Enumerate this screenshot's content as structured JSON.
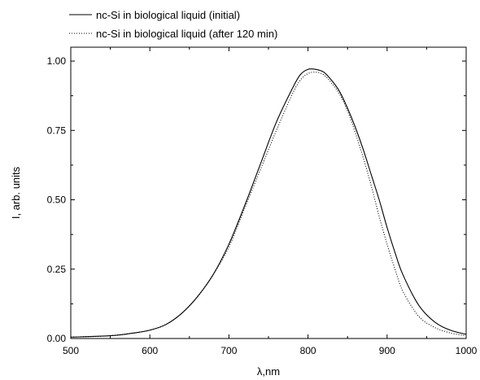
{
  "chart_data": {
    "type": "line",
    "title": "",
    "xlabel": "λ,nm",
    "ylabel": "I, arb. units",
    "xlim": [
      500,
      1000
    ],
    "ylim": [
      0,
      1.05
    ],
    "xticks": [
      "500",
      "600",
      "700",
      "800",
      "900",
      "1000"
    ],
    "xtick_values": [
      500,
      600,
      700,
      800,
      900,
      1000
    ],
    "yticks": [
      "0.00",
      "0.25",
      "0.50",
      "0.75",
      "1.00"
    ],
    "ytick_values": [
      0,
      0.25,
      0.5,
      0.75,
      1.0
    ],
    "grid": false,
    "legend_position": "top-left-outside",
    "series": [
      {
        "name": "nc-Si in biological liquid (initial)",
        "style": "solid",
        "color": "#000000",
        "x": [
          500,
          550,
          580,
          600,
          620,
          640,
          660,
          680,
          700,
          720,
          740,
          760,
          780,
          790,
          800,
          810,
          820,
          830,
          840,
          850,
          860,
          870,
          880,
          890,
          900,
          910,
          920,
          940,
          960,
          980,
          1000
        ],
        "y": [
          0.005,
          0.01,
          0.02,
          0.03,
          0.05,
          0.09,
          0.15,
          0.23,
          0.34,
          0.48,
          0.63,
          0.78,
          0.9,
          0.95,
          0.97,
          0.97,
          0.96,
          0.93,
          0.89,
          0.83,
          0.76,
          0.68,
          0.59,
          0.5,
          0.4,
          0.31,
          0.23,
          0.12,
          0.06,
          0.03,
          0.015
        ]
      },
      {
        "name": "nc-Si in biological liquid (after 120 min)",
        "style": "dotted",
        "color": "#000000",
        "x": [
          500,
          550,
          580,
          600,
          620,
          640,
          660,
          680,
          700,
          720,
          740,
          760,
          780,
          790,
          800,
          810,
          820,
          830,
          840,
          850,
          860,
          870,
          880,
          890,
          900,
          910,
          920,
          940,
          960,
          980,
          1000
        ],
        "y": [
          0.005,
          0.01,
          0.02,
          0.03,
          0.05,
          0.09,
          0.15,
          0.23,
          0.33,
          0.47,
          0.61,
          0.75,
          0.88,
          0.93,
          0.955,
          0.96,
          0.95,
          0.92,
          0.88,
          0.82,
          0.74,
          0.65,
          0.55,
          0.44,
          0.34,
          0.25,
          0.17,
          0.08,
          0.04,
          0.02,
          0.01
        ]
      }
    ]
  }
}
